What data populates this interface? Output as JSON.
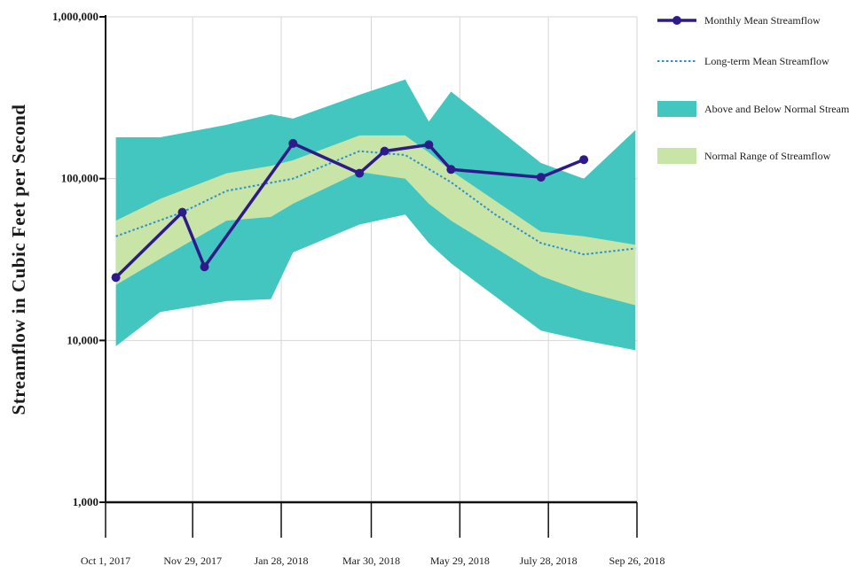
{
  "chart_data": {
    "type": "line",
    "title": "",
    "xlabel": "",
    "ylabel": "Streamflow in Cubic Feet per Second",
    "yscale": "log",
    "ylim": [
      1000,
      1000000
    ],
    "y_ticks": [
      {
        "value": 1000,
        "label": "1,000"
      },
      {
        "value": 10000,
        "label": "10,000"
      },
      {
        "value": 100000,
        "label": "100,000"
      },
      {
        "value": 1000000,
        "label": "1,000,000"
      }
    ],
    "xlim": [
      "2017-10-01",
      "2018-09-26"
    ],
    "x_ticks": [
      {
        "date": "2017-10-01",
        "label": "Oct 1, 2017"
      },
      {
        "date": "2017-11-29",
        "label": "Nov 29, 2017"
      },
      {
        "date": "2018-01-28",
        "label": "Jan 28, 2018"
      },
      {
        "date": "2018-03-30",
        "label": "Mar 30, 2018"
      },
      {
        "date": "2018-05-29",
        "label": "May 29, 2018"
      },
      {
        "date": "2018-07-28",
        "label": "July 28, 2018"
      },
      {
        "date": "2018-09-26",
        "label": "Sep 26, 2018"
      }
    ],
    "grid": true,
    "legend_position": "right",
    "series": [
      {
        "name": "Monthly Mean Streamflow",
        "kind": "line_markers",
        "color": "#2e1a8a",
        "x": [
          "2017-10-08",
          "2017-11-22",
          "2017-12-07",
          "2018-02-05",
          "2018-03-22",
          "2018-04-08",
          "2018-05-08",
          "2018-05-23",
          "2018-07-23",
          "2018-08-21"
        ],
        "y": [
          24500,
          62000,
          28500,
          165000,
          108000,
          148000,
          162000,
          114000,
          102000,
          131000
        ]
      },
      {
        "name": "Long-term Mean Streamflow",
        "kind": "dotted_line",
        "color": "#2b8fd6",
        "x": [
          "2017-10-08",
          "2017-11-22",
          "2017-12-22",
          "2018-02-05",
          "2018-03-22",
          "2018-04-22",
          "2018-05-23",
          "2018-06-22",
          "2018-07-23",
          "2018-08-21",
          "2018-09-25"
        ],
        "y": [
          44000,
          62000,
          84000,
          100000,
          148000,
          140000,
          95000,
          60000,
          40000,
          34000,
          37000
        ]
      },
      {
        "name": "Above and Below Normal Streamflow",
        "kind": "band",
        "color": "#43c6c0",
        "x": [
          "2017-10-08",
          "2017-11-07",
          "2017-12-22",
          "2018-01-21",
          "2018-02-05",
          "2018-03-22",
          "2018-04-22",
          "2018-05-08",
          "2018-05-23",
          "2018-07-23",
          "2018-08-21",
          "2018-09-25"
        ],
        "upper": [
          180000,
          180000,
          215000,
          250000,
          235000,
          330000,
          410000,
          225000,
          345000,
          125000,
          100000,
          200000
        ],
        "lower": [
          9200,
          15000,
          17500,
          18000,
          35000,
          52000,
          60000,
          40000,
          30000,
          11500,
          10000,
          8700
        ]
      },
      {
        "name": "Normal Range of Streamflow",
        "kind": "band",
        "color": "#c9e4a7",
        "x": [
          "2017-10-08",
          "2017-11-07",
          "2017-12-22",
          "2018-01-21",
          "2018-02-05",
          "2018-03-22",
          "2018-04-22",
          "2018-05-08",
          "2018-05-23",
          "2018-07-23",
          "2018-08-21",
          "2018-09-25"
        ],
        "upper": [
          55000,
          75000,
          108000,
          120000,
          130000,
          185000,
          185000,
          145000,
          112000,
          47000,
          44000,
          39000
        ],
        "lower": [
          22000,
          32000,
          55000,
          58000,
          70000,
          110000,
          100000,
          70000,
          55000,
          25000,
          20000,
          16500
        ]
      }
    ]
  }
}
